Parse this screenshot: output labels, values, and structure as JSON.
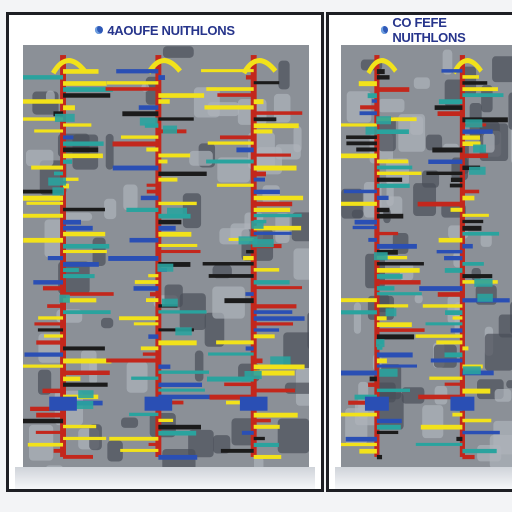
{
  "panels": [
    {
      "title": "4AOUFE NUITHLONS",
      "icon": "flask-icon"
    },
    {
      "title": "CO FEFE NUITHLONS",
      "icon": "flask-icon"
    }
  ],
  "colors": {
    "title": "#27358c",
    "frame": "#1e1f24",
    "machine_gray": "#8b9097",
    "machine_dark": "#4a4f58",
    "teal": "#2aa39e",
    "yellow": "#f2e21a",
    "red": "#c3271c",
    "blue": "#2a4fb4"
  }
}
